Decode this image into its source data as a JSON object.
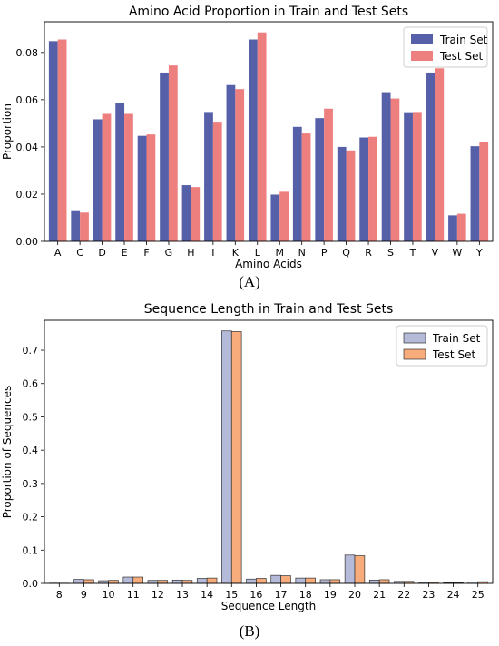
{
  "captions": {
    "a": "(A)",
    "b": "(B)"
  },
  "chart_data": [
    {
      "type": "bar",
      "title": "Amino Acid Proportion in Train and Test Sets",
      "xlabel": "Amino Acids",
      "ylabel": "Proportion",
      "ylim": [
        0,
        0.093
      ],
      "yticks": [
        "0.00",
        "0.02",
        "0.04",
        "0.06",
        "0.08"
      ],
      "legend": "top-right",
      "categories": [
        "A",
        "C",
        "D",
        "E",
        "F",
        "G",
        "H",
        "I",
        "K",
        "L",
        "M",
        "N",
        "P",
        "Q",
        "R",
        "S",
        "T",
        "V",
        "W",
        "Y"
      ],
      "series": [
        {
          "name": "Train Set",
          "color": "#5560a8",
          "edge": "none",
          "values": [
            0.0848,
            0.0128,
            0.0517,
            0.0587,
            0.0447,
            0.0715,
            0.0238,
            0.0548,
            0.0662,
            0.0855,
            0.0198,
            0.0485,
            0.0522,
            0.04,
            0.044,
            0.0632,
            0.0547,
            0.0715,
            0.011,
            0.0403
          ]
        },
        {
          "name": "Test Set",
          "color": "#ee7f7f",
          "edge": "none",
          "values": [
            0.0855,
            0.0122,
            0.054,
            0.054,
            0.0453,
            0.0745,
            0.023,
            0.0503,
            0.0645,
            0.0885,
            0.021,
            0.0457,
            0.0562,
            0.0385,
            0.0443,
            0.0605,
            0.0548,
            0.0733,
            0.0117,
            0.042
          ]
        }
      ]
    },
    {
      "type": "bar",
      "title": "Sequence Length in Train and Test Sets",
      "xlabel": "Sequence Length",
      "ylabel": "Proportion of Sequences",
      "ylim": [
        0,
        0.79
      ],
      "yticks": [
        "0.0",
        "0.1",
        "0.2",
        "0.3",
        "0.4",
        "0.5",
        "0.6",
        "0.7"
      ],
      "legend": "top-right",
      "categories": [
        "8",
        "9",
        "10",
        "11",
        "12",
        "13",
        "14",
        "15",
        "16",
        "17",
        "18",
        "19",
        "20",
        "21",
        "22",
        "23",
        "24",
        "25"
      ],
      "series": [
        {
          "name": "Train Set",
          "color": "#b5bad8",
          "edge": "#333333",
          "values": [
            0.0008,
            0.012,
            0.008,
            0.019,
            0.009,
            0.01,
            0.015,
            0.758,
            0.013,
            0.024,
            0.016,
            0.011,
            0.085,
            0.01,
            0.006,
            0.003,
            0.002,
            0.004
          ]
        },
        {
          "name": "Test Set",
          "color": "#f8ab7b",
          "edge": "#333333",
          "values": [
            0.0006,
            0.011,
            0.009,
            0.019,
            0.009,
            0.009,
            0.016,
            0.756,
            0.015,
            0.023,
            0.016,
            0.011,
            0.083,
            0.011,
            0.006,
            0.003,
            0.002,
            0.005
          ]
        }
      ]
    }
  ]
}
